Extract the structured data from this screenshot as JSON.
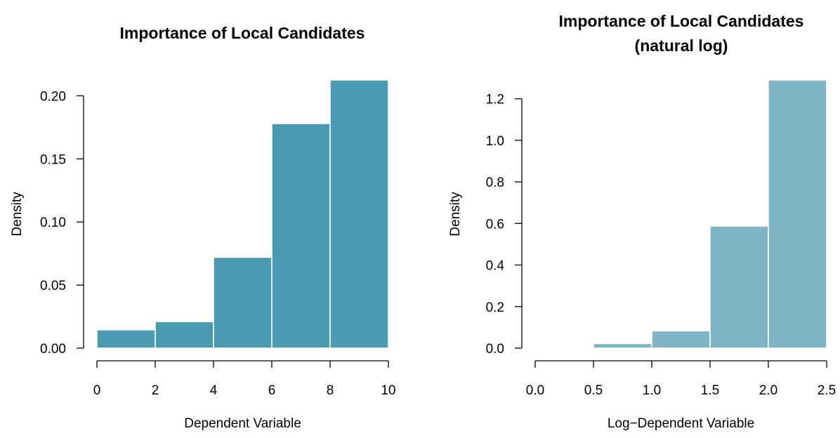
{
  "chart_data": [
    {
      "type": "bar",
      "subtype": "histogram",
      "title_lines": [
        "Importance of Local Candidates"
      ],
      "xlabel": "Dependent Variable",
      "ylabel": "Density",
      "bins": [
        [
          0,
          2
        ],
        [
          2,
          4
        ],
        [
          4,
          6
        ],
        [
          6,
          8
        ],
        [
          8,
          10
        ]
      ],
      "values": [
        0.0145,
        0.021,
        0.072,
        0.178,
        0.2125
      ],
      "xlim": [
        0,
        10
      ],
      "ylim": [
        0,
        0.2125
      ],
      "xticks": [
        0,
        2,
        4,
        6,
        8,
        10
      ],
      "xtick_labels": [
        "0",
        "2",
        "4",
        "6",
        "8",
        "10"
      ],
      "yticks": [
        0,
        0.05,
        0.1,
        0.15,
        0.2
      ],
      "ytick_labels": [
        "0.00",
        "0.05",
        "0.10",
        "0.15",
        "0.20"
      ],
      "bar_color": "#4a9ab1",
      "grid": false
    },
    {
      "type": "bar",
      "subtype": "histogram",
      "title_lines": [
        "Importance of Local Candidates",
        "(natural log)"
      ],
      "xlabel": "Log−Dependent Variable",
      "ylabel": "Density",
      "bins": [
        [
          0,
          0.5
        ],
        [
          0.5,
          1
        ],
        [
          1,
          1.5
        ],
        [
          1.5,
          2
        ],
        [
          2,
          2.5
        ]
      ],
      "values": [
        0.005,
        0.022,
        0.083,
        0.587,
        1.29
      ],
      "xlim": [
        0,
        2.5
      ],
      "ylim": [
        0,
        1.29
      ],
      "xticks": [
        0,
        0.5,
        1,
        1.5,
        2,
        2.5
      ],
      "xtick_labels": [
        "0.0",
        "0.5",
        "1.0",
        "1.5",
        "2.0",
        "2.5"
      ],
      "yticks": [
        0,
        0.2,
        0.4,
        0.6,
        0.8,
        1,
        1.2
      ],
      "ytick_labels": [
        "0.0",
        "0.2",
        "0.4",
        "0.6",
        "0.8",
        "1.0",
        "1.2"
      ],
      "bar_color": "#7fb5c4",
      "grid": false
    }
  ]
}
